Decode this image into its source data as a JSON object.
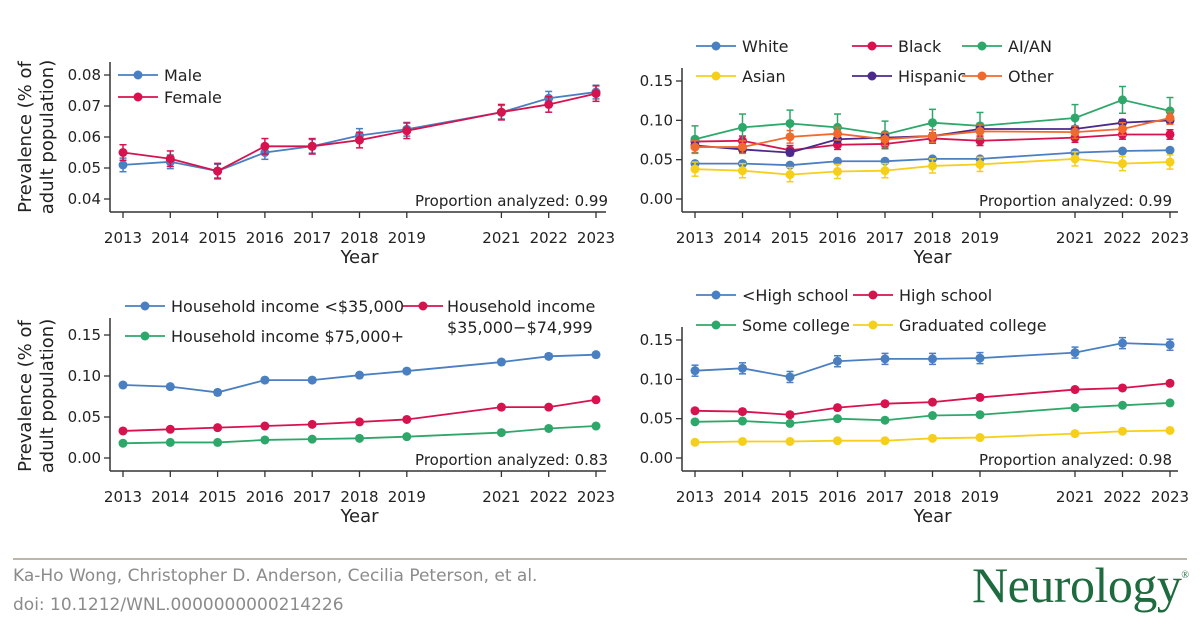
{
  "colors": {
    "blue": "#4a7fc1",
    "red": "#d6134e",
    "green": "#2ea86a",
    "yellow": "#f5cf1a",
    "purple": "#4b2a8c",
    "orange": "#ef6a2c",
    "logo": "#1d6b3e"
  },
  "chart_data": [
    {
      "type": "line",
      "xlabel": "Year",
      "ylabel": "Prevalence (% of adult population)",
      "ylabel_lines": [
        "Prevalence (% of",
        "adult population)"
      ],
      "x": [
        2013,
        2014,
        2015,
        2016,
        2017,
        2018,
        2019,
        2021,
        2022,
        2023
      ],
      "x_tick_labels": [
        "2013",
        "2014",
        "2015",
        "2016",
        "2017",
        "2018",
        "2019",
        "2021",
        "2022",
        "2023"
      ],
      "y_ticks": [
        0.04,
        0.05,
        0.06,
        0.07,
        0.08
      ],
      "y_tick_labels": [
        "0.04",
        "0.05",
        "0.06",
        "0.07",
        "0.08"
      ],
      "ylim": [
        0.036,
        0.085
      ],
      "legend": "top-left",
      "error_bars": true,
      "annotation": "Proportion analyzed: 0.99",
      "series": [
        {
          "name": "Male",
          "color": "#4a7fc1",
          "ci": 0.0022,
          "values": [
            0.051,
            0.052,
            0.049,
            0.055,
            0.057,
            0.0605,
            0.0625,
            0.068,
            0.0725,
            0.0745
          ]
        },
        {
          "name": "Female",
          "color": "#d6134e",
          "ci": 0.0025,
          "values": [
            0.055,
            0.053,
            0.049,
            0.057,
            0.057,
            0.059,
            0.062,
            0.068,
            0.0705,
            0.074
          ]
        }
      ]
    },
    {
      "type": "line",
      "xlabel": "Year",
      "ylabel": "",
      "x": [
        2013,
        2014,
        2015,
        2016,
        2017,
        2018,
        2019,
        2021,
        2022,
        2023
      ],
      "x_tick_labels": [
        "2013",
        "2014",
        "2015",
        "2016",
        "2017",
        "2018",
        "2019",
        "2021",
        "2022",
        "2023"
      ],
      "y_ticks": [
        0,
        0.05,
        0.1,
        0.15
      ],
      "y_tick_labels": [
        "0.00",
        "0.05",
        "0.10",
        "0.15"
      ],
      "ylim": [
        -0.01,
        0.165
      ],
      "legend": "top",
      "error_bars": true,
      "annotation": "Proportion analyzed: 0.99",
      "series": [
        {
          "name": "White",
          "color": "#4a7fc1",
          "ci": 0.002,
          "values": [
            0.045,
            0.045,
            0.043,
            0.048,
            0.048,
            0.051,
            0.051,
            0.059,
            0.061,
            0.062
          ]
        },
        {
          "name": "Black",
          "color": "#d6134e",
          "ci": 0.006,
          "values": [
            0.073,
            0.074,
            0.062,
            0.069,
            0.07,
            0.077,
            0.074,
            0.078,
            0.082,
            0.082
          ]
        },
        {
          "name": "AI/AN",
          "color": "#2ea86a",
          "ci": 0.017,
          "values": [
            0.076,
            0.091,
            0.096,
            0.091,
            0.082,
            0.097,
            0.093,
            0.103,
            0.126,
            0.112
          ]
        },
        {
          "name": "Asian",
          "color": "#f5cf1a",
          "ci": 0.009,
          "values": [
            0.038,
            0.036,
            0.031,
            0.035,
            0.036,
            0.042,
            0.044,
            0.051,
            0.045,
            0.047
          ]
        },
        {
          "name": "Hispanic",
          "color": "#4b2a8c",
          "ci": 0.004,
          "values": [
            0.068,
            0.063,
            0.059,
            0.076,
            0.078,
            0.08,
            0.089,
            0.089,
            0.097,
            0.1
          ]
        },
        {
          "name": "Other",
          "color": "#ef6a2c",
          "ci": 0.008,
          "values": [
            0.066,
            0.066,
            0.079,
            0.083,
            0.076,
            0.08,
            0.086,
            0.085,
            0.089,
            0.103
          ]
        }
      ]
    },
    {
      "type": "line",
      "xlabel": "Year",
      "ylabel": "Prevalence (% of adult population)",
      "ylabel_lines": [
        "Prevalence (% of",
        "adult population)"
      ],
      "x": [
        2013,
        2014,
        2015,
        2016,
        2017,
        2018,
        2019,
        2021,
        2022,
        2023
      ],
      "x_tick_labels": [
        "2013",
        "2014",
        "2015",
        "2016",
        "2017",
        "2018",
        "2019",
        "2021",
        "2022",
        "2023"
      ],
      "y_ticks": [
        0,
        0.05,
        0.1,
        0.15
      ],
      "y_tick_labels": [
        "0.00",
        "0.05",
        "0.10",
        "0.15"
      ],
      "ylim": [
        -0.01,
        0.165
      ],
      "legend": "top",
      "error_bars": true,
      "annotation": "Proportion analyzed: 0.83",
      "series": [
        {
          "name": "Household income <$35,000",
          "color": "#4a7fc1",
          "ci": 0.003,
          "values": [
            0.089,
            0.087,
            0.08,
            0.095,
            0.095,
            0.101,
            0.106,
            0.117,
            0.124,
            0.126
          ]
        },
        {
          "name": "Household income $35,000−$74,999",
          "name_lines": [
            "Household income",
            "$35,000−$74,999"
          ],
          "color": "#d6134e",
          "ci": 0.002,
          "values": [
            0.033,
            0.035,
            0.037,
            0.039,
            0.041,
            0.044,
            0.047,
            0.062,
            0.062,
            0.071
          ]
        },
        {
          "name": "Household income $75,000+",
          "color": "#2ea86a",
          "ci": 0.0012,
          "values": [
            0.018,
            0.019,
            0.019,
            0.022,
            0.023,
            0.024,
            0.026,
            0.031,
            0.036,
            0.039
          ]
        }
      ]
    },
    {
      "type": "line",
      "xlabel": "Year",
      "ylabel": "",
      "x": [
        2013,
        2014,
        2015,
        2016,
        2017,
        2018,
        2019,
        2021,
        2022,
        2023
      ],
      "x_tick_labels": [
        "2013",
        "2014",
        "2015",
        "2016",
        "2017",
        "2018",
        "2019",
        "2021",
        "2022",
        "2023"
      ],
      "y_ticks": [
        0,
        0.05,
        0.1,
        0.15
      ],
      "y_tick_labels": [
        "0.00",
        "0.05",
        "0.10",
        "0.15"
      ],
      "ylim": [
        -0.01,
        0.165
      ],
      "legend": "top",
      "error_bars": true,
      "annotation": "Proportion analyzed: 0.98",
      "series": [
        {
          "name": "<High school",
          "color": "#4a7fc1",
          "ci": 0.007,
          "values": [
            0.111,
            0.114,
            0.103,
            0.123,
            0.126,
            0.126,
            0.127,
            0.134,
            0.146,
            0.144
          ]
        },
        {
          "name": "High school",
          "color": "#d6134e",
          "ci": 0.003,
          "values": [
            0.06,
            0.059,
            0.055,
            0.064,
            0.069,
            0.071,
            0.077,
            0.087,
            0.089,
            0.095
          ]
        },
        {
          "name": "Some college",
          "color": "#2ea86a",
          "ci": 0.002,
          "values": [
            0.046,
            0.047,
            0.044,
            0.05,
            0.048,
            0.054,
            0.055,
            0.064,
            0.067,
            0.07
          ]
        },
        {
          "name": "Graduated college",
          "color": "#f5cf1a",
          "ci": 0.0012,
          "values": [
            0.02,
            0.021,
            0.021,
            0.022,
            0.022,
            0.025,
            0.026,
            0.031,
            0.034,
            0.035
          ]
        }
      ]
    }
  ],
  "footer": {
    "authors": "Ka-Ho Wong, Christopher D. Anderson, Cecilia Peterson, et al.",
    "doi": "doi: 10.1212/WNL.0000000000214226",
    "logo": "Neurology"
  }
}
